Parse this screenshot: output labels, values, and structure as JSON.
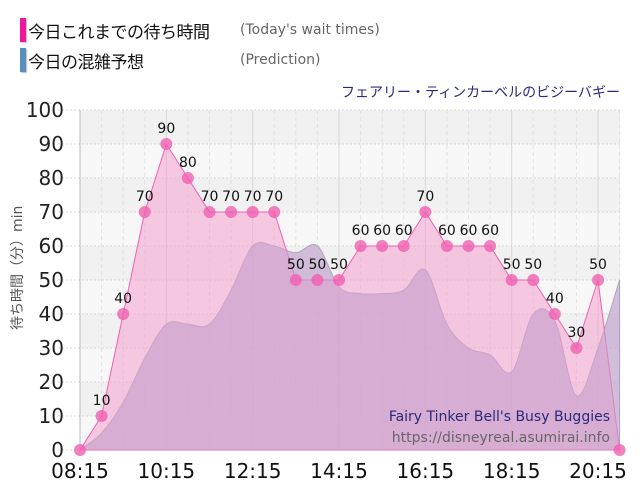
{
  "legend": {
    "actual": {
      "label_ja": "今日これまでの待ち時間",
      "label_en": "(Today's wait times)",
      "color": "#f0189a"
    },
    "prediction": {
      "label_ja": "今日の混雑予想",
      "label_en": "(Prediction)",
      "color": "#5a8fbd"
    }
  },
  "ride_title_ja": "フェアリー・ティンカーベルのビジーバギー",
  "watermark": {
    "title": "Fairy Tinker Bell's Busy Buggies",
    "url": "https://disneyreal.asumirai.info"
  },
  "y_axis_label": "待ち時間（分）min",
  "chart_data": {
    "type": "area",
    "title": "フェアリー・ティンカーベルのビジーバギー",
    "xlabel": "",
    "ylabel": "待ち時間（分）min",
    "ylim": [
      0,
      100
    ],
    "y_ticks": [
      0,
      10,
      20,
      30,
      40,
      50,
      60,
      70,
      80,
      90,
      100
    ],
    "x_ticks": [
      "08:15",
      "10:15",
      "12:15",
      "14:15",
      "16:15",
      "18:15",
      "20:15"
    ],
    "grid": true,
    "legend_position": "top-left",
    "series": [
      {
        "name": "今日これまでの待ち時間 (Today's wait times)",
        "color": "#f0189a",
        "x": [
          "08:15",
          "08:45",
          "09:15",
          "09:45",
          "10:15",
          "10:45",
          "11:15",
          "11:45",
          "12:15",
          "12:45",
          "13:15",
          "13:45",
          "14:15",
          "14:45",
          "15:15",
          "15:45",
          "16:15",
          "16:45",
          "17:15",
          "17:45",
          "18:15",
          "18:45",
          "19:15",
          "19:45",
          "20:15",
          "20:45"
        ],
        "values": [
          0,
          10,
          40,
          70,
          90,
          80,
          70,
          70,
          70,
          70,
          50,
          50,
          50,
          60,
          60,
          60,
          70,
          60,
          60,
          60,
          50,
          50,
          40,
          30,
          50,
          0
        ]
      },
      {
        "name": "今日の混雑予想 (Prediction)",
        "color": "#5a8fbd",
        "x": [
          "08:15",
          "08:45",
          "09:15",
          "09:45",
          "10:15",
          "10:45",
          "11:15",
          "11:45",
          "12:15",
          "12:45",
          "13:15",
          "13:45",
          "14:15",
          "14:45",
          "15:15",
          "15:45",
          "16:15",
          "16:45",
          "17:15",
          "17:45",
          "18:15",
          "18:45",
          "19:15",
          "19:45",
          "20:15",
          "20:45"
        ],
        "values": [
          0,
          5,
          14,
          27,
          37,
          37,
          37,
          47,
          60,
          60,
          58,
          60,
          48,
          46,
          46,
          47,
          53,
          37,
          30,
          28,
          23,
          40,
          38,
          16,
          30,
          50
        ]
      }
    ]
  }
}
